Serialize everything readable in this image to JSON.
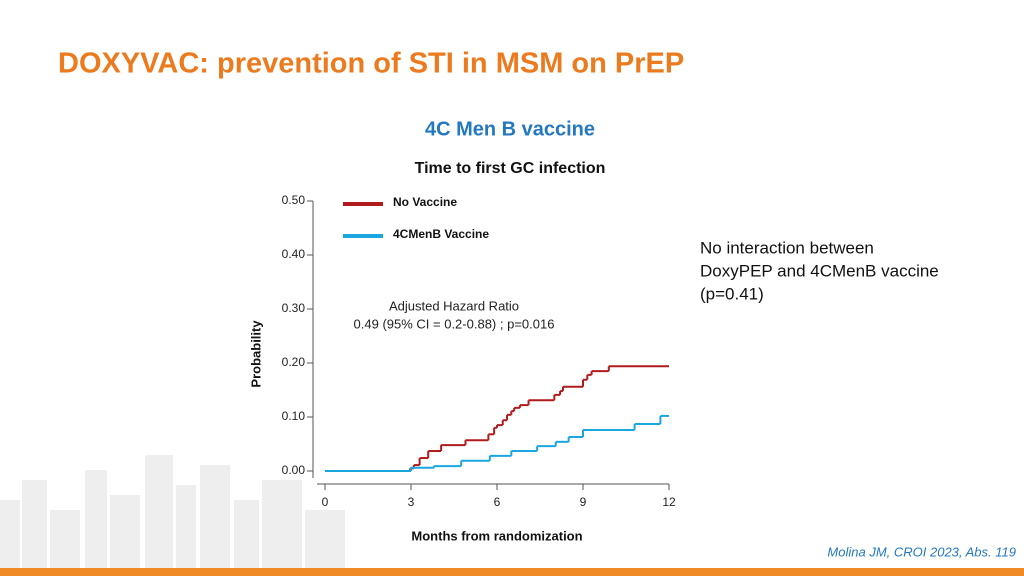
{
  "slide_title": "DOXYVAC: prevention of STI in MSM on PrEP",
  "note": [
    "No interaction between",
    "DoxyPEP and 4CMenB vaccine",
    "(p=0.41)"
  ],
  "citation": "Molina JM, CROI 2023, Abs. 119",
  "chart_data": {
    "type": "step",
    "title": "4C Men B vaccine",
    "subtitle": "Time to first GC infection",
    "x_label": "Months from randomization",
    "y_label": "Probability",
    "annotation": [
      "Adjusted Hazard Ratio",
      "0.49 (95% CI = 0.2-0.88) ; p=0.016"
    ],
    "xlim": [
      0,
      12
    ],
    "xticks": [
      0,
      3,
      6,
      9,
      12
    ],
    "ylim": [
      0,
      0.5
    ],
    "yticks": [
      {
        "value": 0,
        "label": "0.00"
      },
      {
        "value": 0.1,
        "label": "0.10"
      },
      {
        "value": 0.2,
        "label": "0.20"
      },
      {
        "value": 0.3,
        "label": "0.30"
      },
      {
        "value": 0.4,
        "label": "0.40"
      },
      {
        "value": 0.5,
        "label": "0.50"
      }
    ],
    "series": [
      {
        "name": "No Vaccine",
        "color": "#b01c1c",
        "x": [
          0,
          2.97,
          3.1,
          3.3,
          3.6,
          4.05,
          4.9,
          5.7,
          5.9,
          6.0,
          6.2,
          6.35,
          6.5,
          6.6,
          6.8,
          7.1,
          8.0,
          8.2,
          8.3,
          9.0,
          9.15,
          9.3,
          9.9
        ],
        "values": [
          0,
          0.005,
          0.011,
          0.024,
          0.037,
          0.048,
          0.057,
          0.068,
          0.08,
          0.085,
          0.094,
          0.104,
          0.111,
          0.117,
          0.122,
          0.131,
          0.141,
          0.148,
          0.156,
          0.169,
          0.178,
          0.185,
          0.194
        ]
      },
      {
        "name": "4CMenB Vaccine",
        "color": "#1aa7e0",
        "x": [
          0,
          3.0,
          3.8,
          4.75,
          5.75,
          6.5,
          7.4,
          8.05,
          8.5,
          9.0,
          10.8,
          11.7
        ],
        "values": [
          0,
          0.006,
          0.009,
          0.019,
          0.028,
          0.037,
          0.046,
          0.054,
          0.063,
          0.076,
          0.087,
          0.102
        ]
      }
    ]
  }
}
